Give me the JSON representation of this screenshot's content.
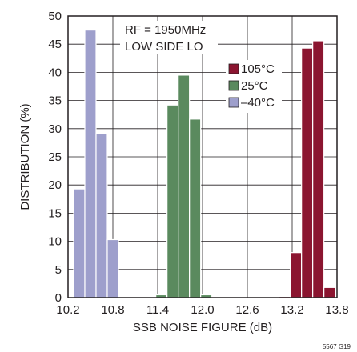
{
  "chart_data": {
    "type": "bar",
    "xlabel": "SSB NOISE FIGURE (dB)",
    "ylabel": "DISTRIBUTION (%)",
    "xlim": [
      10.2,
      13.8
    ],
    "ylim": [
      0,
      50
    ],
    "xticks": [
      10.2,
      10.8,
      11.4,
      12.0,
      12.6,
      13.2,
      13.8
    ],
    "xtick_labels": [
      "10.2",
      "10.8",
      "11.4",
      "12.0",
      "12.6",
      "13.2",
      "13.8"
    ],
    "yticks": [
      0,
      5,
      10,
      15,
      20,
      25,
      30,
      35,
      40,
      45,
      50
    ],
    "grid": true,
    "annotation_lines": [
      "RF = 1950MHz",
      "LOW SIDE LO"
    ],
    "legend_position": "top-right",
    "figure_id": "5567 G19",
    "series": [
      {
        "name": "105°C",
        "color": "#8b1530",
        "x": [
          13.1,
          13.25,
          13.4,
          13.55,
          13.7
        ],
        "values": [
          0.2,
          8,
          44.3,
          45.6,
          1.8
        ]
      },
      {
        "name": "25°C",
        "color": "#5a8a5e",
        "x": [
          11.45,
          11.6,
          11.75,
          11.9,
          12.05
        ],
        "values": [
          0.5,
          34.2,
          39.5,
          31.7,
          0.5
        ]
      },
      {
        "name": "–40°C",
        "color": "#9e9fcc",
        "x": [
          10.35,
          10.5,
          10.65,
          10.8
        ],
        "values": [
          19.3,
          47.5,
          29.1,
          10.3
        ]
      }
    ]
  }
}
